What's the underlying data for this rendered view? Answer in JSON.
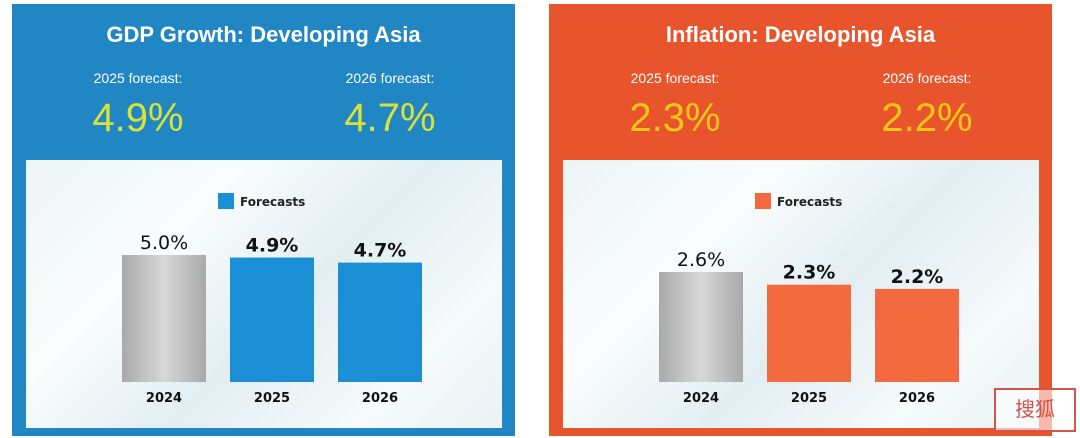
{
  "colors": {
    "gdp_panel": "#2186c4",
    "inflation_panel": "#e8542b",
    "gdp_value": "#d8e23a",
    "inflation_value": "#f5c518"
  },
  "gdp": {
    "title": "GDP Growth: Developing Asia",
    "forecast_2025_label": "2025 forecast:",
    "forecast_2025_value": "4.9%",
    "forecast_2026_label": "2026 forecast:",
    "forecast_2026_value": "4.7%"
  },
  "inflation": {
    "title": "Inflation: Developing Asia",
    "forecast_2025_label": "2025 forecast:",
    "forecast_2025_value": "2.3%",
    "forecast_2026_label": "2026 forecast:",
    "forecast_2026_value": "2.2%"
  },
  "watermark": {
    "text": "搜狐"
  },
  "chart_data": [
    {
      "type": "bar",
      "title": "GDP Growth: Developing Asia",
      "categories": [
        "2024",
        "2025",
        "2026"
      ],
      "values": [
        5.0,
        4.9,
        4.7
      ],
      "value_labels": [
        "5.0%",
        "4.9%",
        "4.7%"
      ],
      "forecast": [
        false,
        true,
        true
      ],
      "bar_colors": [
        "#bdbdbd",
        "#1a8fd6",
        "#1a8fd6"
      ],
      "legend": [
        {
          "label": "Forecasts",
          "color": "#1a8fd6"
        }
      ],
      "legend_position": "top-center",
      "grid": false
    },
    {
      "type": "bar",
      "title": "Inflation: Developing Asia",
      "categories": [
        "2024",
        "2025",
        "2026"
      ],
      "values": [
        2.6,
        2.3,
        2.2
      ],
      "value_labels": [
        "2.6%",
        "2.3%",
        "2.2%"
      ],
      "forecast": [
        false,
        true,
        true
      ],
      "bar_colors": [
        "#bdbdbd",
        "#f26a3d",
        "#f26a3d"
      ],
      "legend": [
        {
          "label": "Forecasts",
          "color": "#f26a3d"
        }
      ],
      "legend_position": "top-center",
      "grid": false
    }
  ]
}
